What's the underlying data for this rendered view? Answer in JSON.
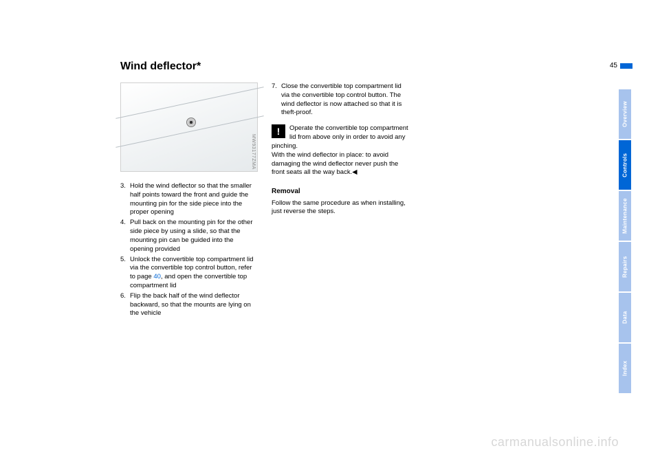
{
  "page_number": "45",
  "title": "Wind deflector*",
  "figure": {
    "code": "MW93177ZMA"
  },
  "column1": {
    "steps": [
      {
        "n": "3.",
        "t": "Hold the wind deflector so that the smaller half points toward the front and guide the mounting pin for the side piece into the proper opening"
      },
      {
        "n": "4.",
        "t": "Pull back on the mounting pin for the other side piece by using a slide, so that the mounting pin can be guided into the opening provided"
      },
      {
        "n": "5.",
        "t_before": "Unlock the convertible top compartment lid via the convertible top control button, refer to page ",
        "link": "40",
        "t_after": ", and open the convertible top compartment lid"
      },
      {
        "n": "6.",
        "t": "Flip the back half of the wind deflector backward, so that the mounts are lying on the vehicle"
      }
    ]
  },
  "column2": {
    "steps": [
      {
        "n": "7.",
        "t": "Close the convertible top compartment lid via the convertible top control button. The wind deflector is now attached so that it is theft-proof."
      }
    ],
    "warning_icon": "!",
    "warning_text": "Operate the convertible top compartment lid from above only in order to avoid any pinching.\nWith the wind deflector in place: to avoid damaging the wind deflector never push the front seats all the way back.◀",
    "removal_heading": "Removal",
    "removal_text": "Follow the same procedure as when installing, just reverse the steps."
  },
  "side_tabs": [
    {
      "label": "Overview",
      "active": false
    },
    {
      "label": "Controls",
      "active": true
    },
    {
      "label": "Maintenance",
      "active": false
    },
    {
      "label": "Repairs",
      "active": false
    },
    {
      "label": "Data",
      "active": false
    },
    {
      "label": "Index",
      "active": false
    }
  ],
  "watermark": "carmanualsonline.info"
}
